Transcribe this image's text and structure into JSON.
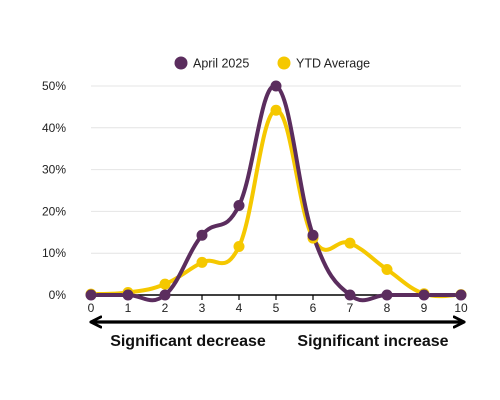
{
  "chart_data": {
    "type": "line",
    "smooth": true,
    "x": [
      0,
      1,
      2,
      3,
      4,
      5,
      6,
      7,
      8,
      9,
      10
    ],
    "x_tick_labels": [
      "0",
      "1",
      "2",
      "3",
      "4",
      "5",
      "6",
      "7",
      "8",
      "9",
      "10"
    ],
    "y_tick_labels": [
      "0%",
      "10%",
      "20%",
      "30%",
      "40%",
      "50%"
    ],
    "y_ticks": [
      0,
      10,
      20,
      30,
      40,
      50
    ],
    "ylim": [
      0,
      50
    ],
    "xlim": [
      0,
      10
    ],
    "grid": true,
    "legend_placement": "top",
    "series": [
      {
        "name": "April 2025",
        "color": "#5b2d5e",
        "values": [
          0,
          0,
          0,
          14.3,
          21.4,
          50,
          14.3,
          0,
          0,
          0,
          0
        ]
      },
      {
        "name": "YTD Average",
        "color": "#f5c800",
        "values": [
          0.2,
          0.6,
          2.6,
          7.8,
          11.6,
          44.2,
          13.6,
          12.4,
          6.1,
          0.3,
          0.1
        ]
      }
    ],
    "annotations": {
      "left_label": "Significant decrease",
      "right_label": "Significant increase"
    },
    "axis_color": "#000000",
    "grid_color": "#e4e4e4"
  }
}
